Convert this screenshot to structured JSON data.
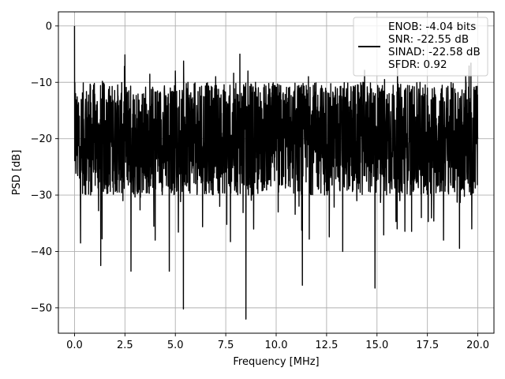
{
  "chart_data": {
    "type": "line",
    "xlabel": "Frequency [MHz]",
    "ylabel": "PSD [dB]",
    "xlim": [
      -0.8,
      20.8
    ],
    "ylim": [
      -54.5,
      2.5
    ],
    "xticks": [
      0.0,
      2.5,
      5.0,
      7.5,
      10.0,
      12.5,
      15.0,
      17.5,
      20.0
    ],
    "xtick_labels": [
      "0.0",
      "2.5",
      "5.0",
      "7.5",
      "10.0",
      "12.5",
      "15.0",
      "17.5",
      "20.0"
    ],
    "yticks": [
      0,
      -10,
      -20,
      -30,
      -40,
      -50
    ],
    "ytick_labels": [
      "0",
      "−10",
      "−20",
      "−30",
      "−40",
      "−50"
    ],
    "grid": true,
    "legend_position": "top-right",
    "series": [
      {
        "name": "ENOB: -4.04 bits\nSNR: -22.55 dB\nSINAD: -22.58 dB\nSFDR: 0.92",
        "color": "#000000",
        "x": [
          0.0,
          0.05,
          0.1,
          0.15,
          0.25,
          0.3,
          0.35,
          0.5,
          0.8,
          1.1,
          1.3,
          1.7,
          2.4,
          2.8,
          3.3,
          4.0,
          4.2,
          4.7,
          5.0,
          5.2,
          5.4,
          5.8,
          6.0,
          6.5,
          7.0,
          7.2,
          7.5,
          7.9,
          8.2,
          8.5,
          8.6,
          8.8,
          9.2,
          9.7,
          10.1,
          10.5,
          10.8,
          11.2,
          11.3,
          11.6,
          12.0,
          12.4,
          12.9,
          13.3,
          13.7,
          14.0,
          14.3,
          14.6,
          14.9,
          15.2,
          15.6,
          16.0,
          16.4,
          16.8,
          17.2,
          17.5,
          17.9,
          18.3,
          18.6,
          19.0,
          19.4,
          19.7,
          19.9,
          20.0
        ],
        "y": [
          0.0,
          -12.0,
          -23.0,
          -14.0,
          -27.0,
          -38.5,
          -15.0,
          -20.0,
          -30.0,
          -14.5,
          -42.5,
          -19.0,
          -31.0,
          -43.5,
          -16.0,
          -38.0,
          -12.0,
          -43.5,
          -8.0,
          -25.0,
          -50.2,
          -13.0,
          -28.0,
          -18.0,
          -9.0,
          -32.0,
          -17.0,
          -22.0,
          -5.0,
          -52.0,
          -8.0,
          -30.0,
          -19.0,
          -13.0,
          -33.0,
          -15.0,
          -27.0,
          -21.0,
          -46.0,
          -9.0,
          -26.0,
          -30.0,
          -15.0,
          -40.0,
          -20.0,
          -31.0,
          -10.0,
          -25.0,
          -46.5,
          -18.0,
          -12.0,
          -36.0,
          -20.0,
          -14.0,
          -34.0,
          -11.0,
          -25.0,
          -38.0,
          -16.0,
          -22.0,
          -9.0,
          -36.0,
          -17.0,
          -20.0
        ]
      }
    ]
  }
}
